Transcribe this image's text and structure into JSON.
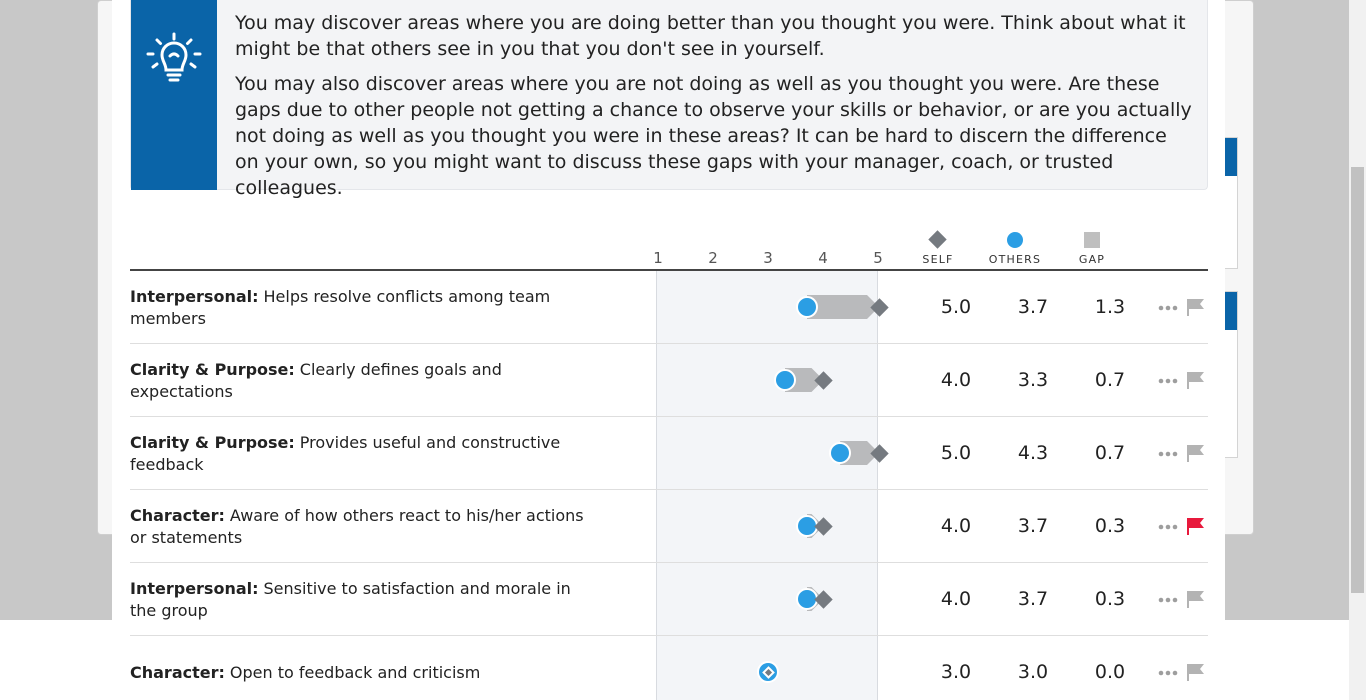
{
  "tip": {
    "icon": "lightbulb-icon",
    "paragraph1": "You may discover areas where you are doing better than you thought you were. Think about what it might be that others see in you that you don't see in yourself.",
    "paragraph2": "You may also discover areas where you are not doing as well as you thought you were. Are these gaps due to other people not getting a chance to observe your skills or behavior, or are you actually not doing as well as you thought you were in these areas? It can be hard to discern the difference on your own, so you might want to discuss these gaps with your manager, coach, or trusted colleagues."
  },
  "header": {
    "scale": [
      "1",
      "2",
      "3",
      "4",
      "5"
    ],
    "self_label": "SELF",
    "others_label": "OTHERS",
    "gap_label": "GAP"
  },
  "colors": {
    "brand_blue": "#0a64a8",
    "others_blue": "#2b9ee4",
    "self_gray": "#757a80",
    "gap_gray": "#b9babc",
    "flag_active": "#e8193c",
    "flag_inactive": "#b3b3b3"
  },
  "rows": [
    {
      "category": "Interpersonal:",
      "text": "Helps resolve conflicts among team members",
      "self": "5.0",
      "others": "3.7",
      "gap": "1.3",
      "flagged": false
    },
    {
      "category": "Clarity & Purpose:",
      "text": "Clearly defines goals and expectations",
      "self": "4.0",
      "others": "3.3",
      "gap": "0.7",
      "flagged": false
    },
    {
      "category": "Clarity & Purpose:",
      "text": "Provides useful and constructive feedback",
      "self": "5.0",
      "others": "4.3",
      "gap": "0.7",
      "flagged": false
    },
    {
      "category": "Character:",
      "text": "Aware of how others react to his/her actions or statements",
      "self": "4.0",
      "others": "3.7",
      "gap": "0.3",
      "flagged": true
    },
    {
      "category": "Interpersonal:",
      "text": "Sensitive to satisfaction and morale in the group",
      "self": "4.0",
      "others": "3.7",
      "gap": "0.3",
      "flagged": false
    },
    {
      "category": "Character:",
      "text": "Open to feedback and criticism",
      "self": "3.0",
      "others": "3.0",
      "gap": "0.0",
      "flagged": false
    }
  ]
}
